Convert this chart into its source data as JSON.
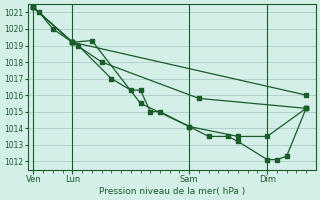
{
  "title": "Pression niveau de la mer( hPa )",
  "ylabel_values": [
    1012,
    1013,
    1014,
    1015,
    1016,
    1017,
    1018,
    1019,
    1020,
    1021
  ],
  "ylim": [
    1011.5,
    1021.5
  ],
  "bg_color": "#d4eee8",
  "grid_color": "#aacccc",
  "line_color": "#1a5c2a",
  "day_labels": [
    "Ven",
    "Lun",
    "Sam",
    "Dim"
  ],
  "day_positions": [
    0,
    2,
    8,
    12
  ],
  "series": [
    [
      0.0,
      1021.3,
      0.3,
      1021.0,
      1.0,
      1020.0,
      2.0,
      1019.2,
      2.3,
      1019.0,
      4.0,
      1017.0,
      5.0,
      1016.3,
      5.5,
      1016.3,
      6.0,
      1015.0,
      6.5,
      1015.0,
      8.0,
      1014.1,
      9.0,
      1013.5,
      10.0,
      1013.5,
      10.5,
      1013.2,
      12.0,
      1012.1,
      12.5,
      1012.1,
      13.0,
      1012.3,
      14.0,
      1015.2
    ],
    [
      0.0,
      1021.3,
      2.0,
      1019.2,
      3.0,
      1019.3,
      5.5,
      1015.5,
      8.0,
      1014.1,
      10.5,
      1013.5,
      12.0,
      1013.5,
      14.0,
      1015.2
    ],
    [
      0.0,
      1021.3,
      2.0,
      1019.2,
      3.5,
      1018.0,
      8.5,
      1015.8,
      14.0,
      1015.2
    ],
    [
      0.0,
      1021.3,
      2.0,
      1019.2,
      14.0,
      1016.0
    ]
  ],
  "figsize": [
    3.2,
    2.0
  ],
  "dpi": 100
}
